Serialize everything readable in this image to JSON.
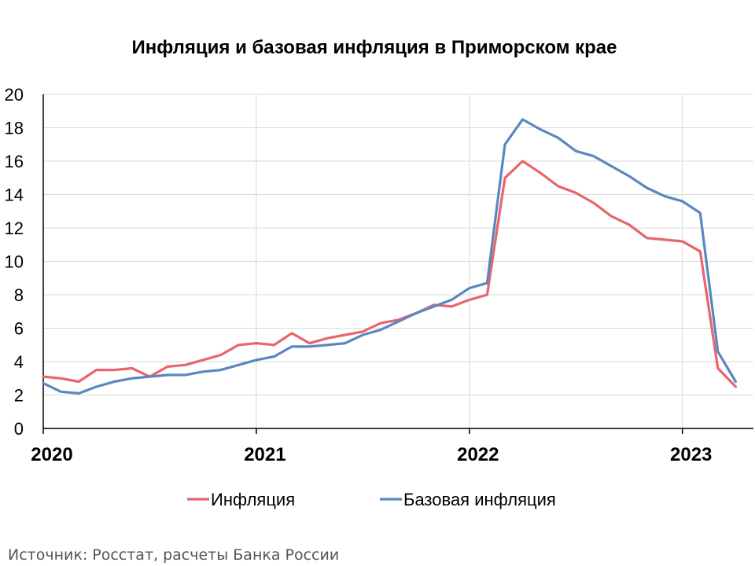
{
  "chart_data": {
    "type": "line",
    "title": "Инфляция и базовая инфляция в Приморском крае",
    "source": "Источник: Росстат, расчеты Банка России",
    "ylim": [
      0,
      20
    ],
    "yticks": [
      0,
      2,
      4,
      6,
      8,
      10,
      12,
      14,
      16,
      18,
      20
    ],
    "xlim": [
      "2020-01",
      "2023-05"
    ],
    "xticks": [
      {
        "label": "2020",
        "date": "2020-01"
      },
      {
        "label": "2021",
        "date": "2021-01"
      },
      {
        "label": "2022",
        "date": "2022-01"
      },
      {
        "label": "2023",
        "date": "2023-01"
      }
    ],
    "grid": true,
    "legend_position": "bottom",
    "x": [
      "2020-01",
      "2020-02",
      "2020-03",
      "2020-04",
      "2020-05",
      "2020-06",
      "2020-07",
      "2020-08",
      "2020-09",
      "2020-10",
      "2020-11",
      "2020-12",
      "2021-01",
      "2021-02",
      "2021-03",
      "2021-04",
      "2021-05",
      "2021-06",
      "2021-07",
      "2021-08",
      "2021-09",
      "2021-10",
      "2021-11",
      "2021-12",
      "2022-01",
      "2022-02",
      "2022-03",
      "2022-04",
      "2022-05",
      "2022-06",
      "2022-07",
      "2022-08",
      "2022-09",
      "2022-10",
      "2022-11",
      "2022-12",
      "2023-01",
      "2023-02",
      "2023-03",
      "2023-04"
    ],
    "series": [
      {
        "name": "Инфляция",
        "color": "#e8656b",
        "values": [
          3.1,
          3.0,
          2.8,
          3.5,
          3.5,
          3.6,
          3.1,
          3.7,
          3.8,
          4.1,
          4.4,
          5.0,
          5.1,
          5.0,
          5.7,
          5.1,
          5.4,
          5.6,
          5.8,
          6.3,
          6.5,
          6.9,
          7.4,
          7.3,
          7.7,
          8.0,
          15.0,
          16.0,
          15.3,
          14.5,
          14.1,
          13.5,
          12.7,
          12.2,
          11.4,
          11.3,
          11.2,
          10.6,
          3.6,
          2.5
        ]
      },
      {
        "name": "Базовая инфляция",
        "color": "#5b87bf",
        "values": [
          2.7,
          2.2,
          2.1,
          2.5,
          2.8,
          3.0,
          3.1,
          3.2,
          3.2,
          3.4,
          3.5,
          3.8,
          4.1,
          4.3,
          4.9,
          4.9,
          5.0,
          5.1,
          5.6,
          5.9,
          6.4,
          6.9,
          7.3,
          7.7,
          8.4,
          8.7,
          17.0,
          18.5,
          17.9,
          17.4,
          16.6,
          16.3,
          15.7,
          15.1,
          14.4,
          13.9,
          13.6,
          12.9,
          4.6,
          2.8
        ]
      }
    ]
  }
}
